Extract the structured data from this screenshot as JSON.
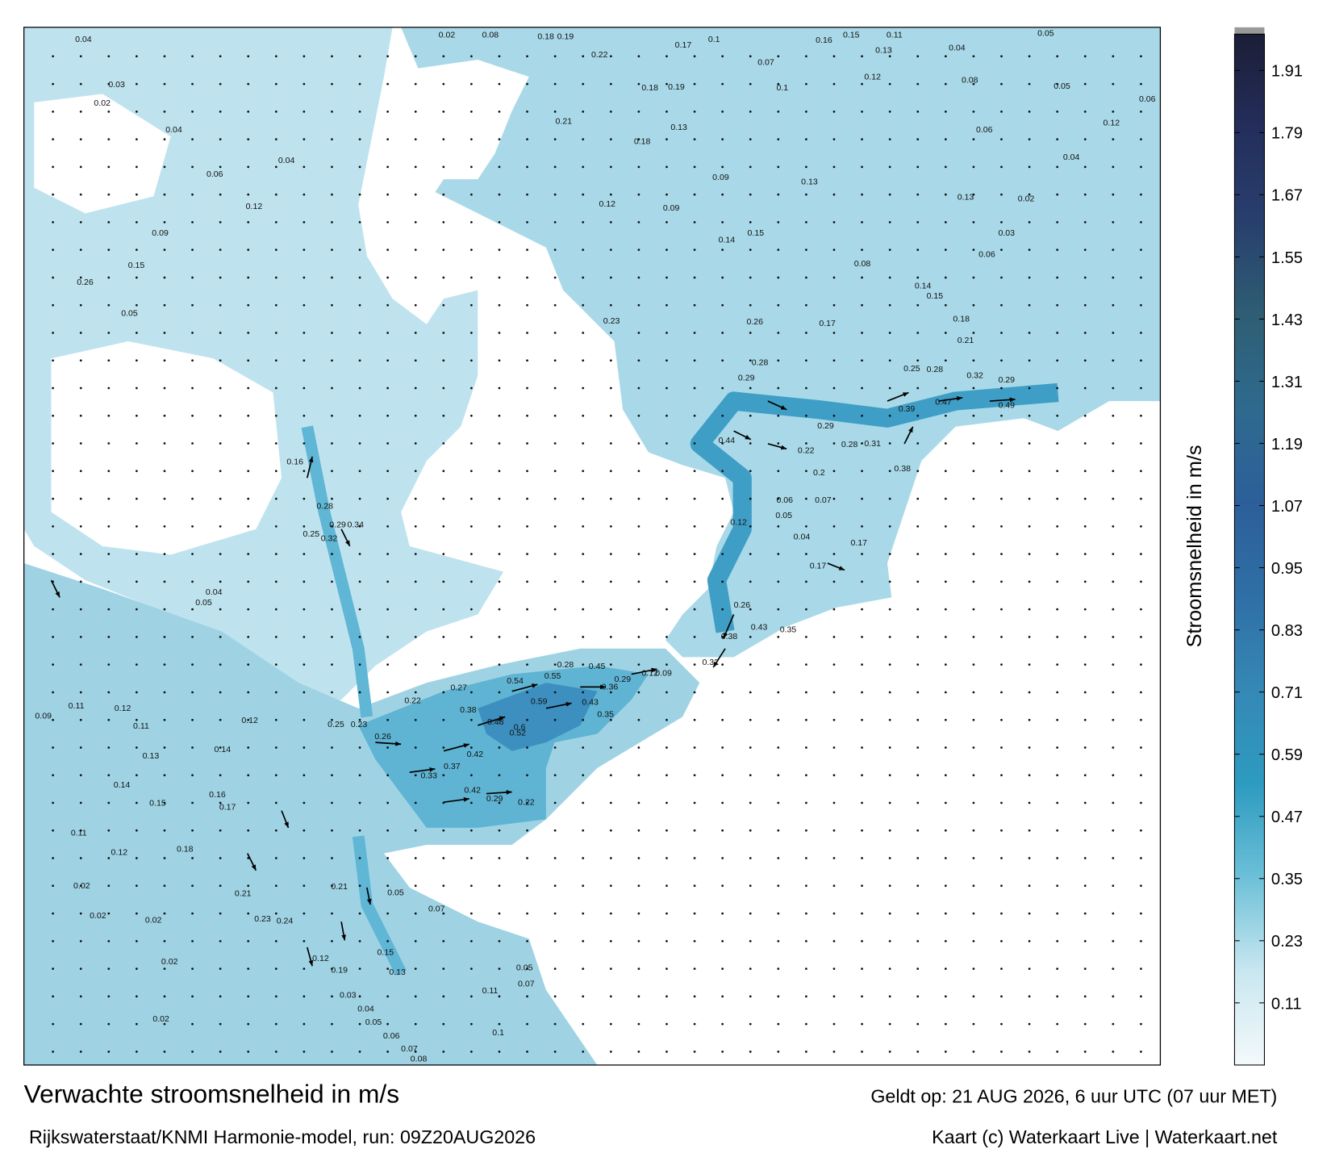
{
  "title": "Verwachte stroomsnelheid in m/s",
  "subtitle": "Rijkswaterstaat/KNMI Harmonie-model, run: 09Z20AUG2026",
  "valid_time": "Geldt op: 21 AUG 2026, 6 uur UTC (07 uur MET)",
  "credit": "Kaart (c) Waterkaart Live | Waterkaart.net",
  "colorbar": {
    "label": "Stroomsnelheid in m/s",
    "lim": [
      -0.01,
      1.98
    ],
    "ticks": [
      0.11,
      0.23,
      0.35,
      0.47,
      0.59,
      0.71,
      0.83,
      0.95,
      1.07,
      1.19,
      1.31,
      1.43,
      1.55,
      1.67,
      1.79,
      1.91
    ],
    "colors": [
      "#f3f9fb",
      "#c9e7f0",
      "#6cc0d8",
      "#2d9bc0",
      "#3588b5",
      "#2f6fa6",
      "#2c5f9a",
      "#2e6a8e",
      "#2e5e74",
      "#283f6e",
      "#242e5c",
      "#1b1e36"
    ]
  },
  "current_labels": [
    0.04,
    0.02,
    0.08,
    0.18,
    0.19,
    0.17,
    0.1,
    0.16,
    0.15,
    0.11,
    0.05,
    0.04,
    0.13,
    0.07,
    0.22,
    0.03,
    0.02,
    0.18,
    0.19,
    0.1,
    0.12,
    0.08,
    0.06,
    0.05,
    0.04,
    0.06,
    0.04,
    0.21,
    0.18,
    0.13,
    0.06,
    0.12,
    0.04,
    0.09,
    0.13,
    0.13,
    0.02,
    0.09,
    0.12,
    0.12,
    0.09,
    0.14,
    0.15,
    0.03,
    0.06,
    0.08,
    0.14,
    0.15,
    0.15,
    0.26,
    0.05,
    0.23,
    0.26,
    0.17,
    0.18,
    0.21,
    0.28,
    0.29,
    0.25,
    0.28,
    0.32,
    0.29,
    0.47,
    0.49,
    0.29,
    0.22,
    0.44,
    0.39,
    0.28,
    0.31,
    0.2,
    0.38,
    0.06,
    0.07,
    0.05,
    0.04,
    0.12,
    0.17,
    0.17,
    0.26,
    0.43,
    0.35,
    0.38,
    0.32,
    0.09,
    0.12,
    0.28,
    0.45,
    0.55,
    0.54,
    0.36,
    0.29,
    0.59,
    0.43,
    0.35,
    0.48,
    0.38,
    0.6,
    0.52,
    0.42,
    0.37,
    0.33,
    0.42,
    0.29,
    0.22,
    0.26,
    0.23,
    0.25,
    0.22,
    0.27,
    0.16,
    0.28,
    0.29,
    0.34,
    0.32,
    0.25,
    0.05,
    0.04,
    0.09,
    0.11,
    0.12,
    0.11,
    0.13,
    0.14,
    0.12,
    0.14,
    0.15,
    0.16,
    0.17,
    0.11,
    0.12,
    0.18,
    0.02,
    0.02,
    0.02,
    0.02,
    0.02,
    0.21,
    0.23,
    0.24,
    0.21,
    0.05,
    0.07,
    0.15,
    0.13,
    0.12,
    0.19,
    0.03,
    0.04,
    0.05,
    0.06,
    0.07,
    0.08,
    0.1,
    0.11,
    0.05,
    0.07
  ]
}
